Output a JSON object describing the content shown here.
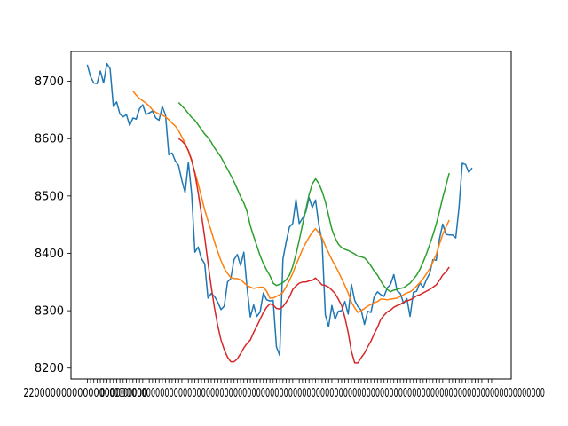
{
  "chart_data": {
    "type": "line",
    "title": "",
    "xlabel": "",
    "ylabel": "",
    "grid": false,
    "legend": "none",
    "xlim": [
      -5,
      130
    ],
    "ylim": [
      8181,
      8752
    ],
    "yticks": [
      8200,
      8300,
      8400,
      8500,
      8600,
      8700
    ],
    "x_tick_count": 125,
    "x_tick_first_label": "2",
    "x_tick_last_label": "00",
    "series": [
      {
        "color": "#1f77b4",
        "start": 0,
        "values": [
          8729,
          8708,
          8697,
          8696,
          8718,
          8697,
          8731,
          8722,
          8656,
          8664,
          8643,
          8638,
          8642,
          8623,
          8636,
          8634,
          8652,
          8659,
          8642,
          8645,
          8648,
          8636,
          8632,
          8656,
          8641,
          8572,
          8575,
          8561,
          8553,
          8527,
          8506,
          8559,
          8504,
          8402,
          8411,
          8391,
          8382,
          8322,
          8330,
          8325,
          8315,
          8302,
          8308,
          8350,
          8356,
          8389,
          8398,
          8379,
          8402,
          8340,
          8289,
          8310,
          8290,
          8298,
          8331,
          8319,
          8317,
          8318,
          8237,
          8222,
          8390,
          8420,
          8446,
          8452,
          8494,
          8452,
          8461,
          8472,
          8497,
          8480,
          8493,
          8450,
          8421,
          8293,
          8272,
          8309,
          8285,
          8299,
          8300,
          8316,
          8294,
          8346,
          8318,
          8307,
          8301,
          8276,
          8299,
          8297,
          8325,
          8333,
          8328,
          8325,
          8340,
          8346,
          8363,
          8335,
          8330,
          8313,
          8321,
          8290,
          8332,
          8334,
          8349,
          8340,
          8354,
          8365,
          8389,
          8388,
          8425,
          8451,
          8433,
          8432,
          8432,
          8427,
          8480,
          8557,
          8555,
          8541,
          8549
        ]
      },
      {
        "color": "#ff7f0e",
        "start": 14,
        "values": [
          8683,
          8676,
          8670,
          8666,
          8662,
          8657,
          8650,
          8646,
          8643,
          8641,
          8638,
          8633,
          8627,
          8622,
          8614,
          8603,
          8592,
          8578,
          8561,
          8541,
          8521,
          8499,
          8476,
          8457,
          8439,
          8420,
          8403,
          8387,
          8374,
          8365,
          8358,
          8356,
          8356,
          8354,
          8349,
          8344,
          8341,
          8339,
          8340,
          8341,
          8341,
          8334,
          8322,
          8322,
          8325,
          8328,
          8332,
          8342,
          8353,
          8365,
          8380,
          8393,
          8407,
          8418,
          8428,
          8437,
          8443,
          8436,
          8427,
          8413,
          8401,
          8389,
          8379,
          8368,
          8356,
          8344,
          8331,
          8315,
          8305,
          8297,
          8300,
          8304,
          8308,
          8311,
          8314,
          8316,
          8320,
          8320,
          8319,
          8320,
          8321,
          8322,
          8325,
          8328,
          8331,
          8333,
          8337,
          8343,
          8349,
          8356,
          8364,
          8373,
          8385,
          8398,
          8416,
          8433,
          8446,
          8458
        ]
      },
      {
        "color": "#2ca02c",
        "start": 28,
        "values": [
          8663,
          8657,
          8651,
          8644,
          8637,
          8632,
          8624,
          8616,
          8608,
          8602,
          8594,
          8584,
          8576,
          8568,
          8557,
          8547,
          8536,
          8525,
          8512,
          8499,
          8488,
          8473,
          8448,
          8430,
          8413,
          8396,
          8382,
          8371,
          8361,
          8348,
          8344,
          8346,
          8349,
          8354,
          8362,
          8377,
          8398,
          8423,
          8450,
          8476,
          8502,
          8521,
          8530,
          8522,
          8508,
          8490,
          8466,
          8442,
          8427,
          8416,
          8410,
          8407,
          8405,
          8402,
          8399,
          8395,
          8394,
          8392,
          8386,
          8378,
          8369,
          8362,
          8352,
          8343,
          8337,
          8333,
          8336,
          8337,
          8339,
          8340,
          8344,
          8348,
          8355,
          8362,
          8372,
          8385,
          8399,
          8415,
          8432,
          8451,
          8473,
          8497,
          8518,
          8540
        ]
      },
      {
        "color": "#d62728",
        "start": 28,
        "values": [
          8600,
          8596,
          8590,
          8579,
          8563,
          8539,
          8506,
          8468,
          8428,
          8384,
          8342,
          8305,
          8274,
          8249,
          8232,
          8219,
          8211,
          8211,
          8216,
          8225,
          8235,
          8243,
          8249,
          8262,
          8273,
          8285,
          8297,
          8306,
          8312,
          8310,
          8304,
          8303,
          8307,
          8315,
          8324,
          8337,
          8343,
          8348,
          8350,
          8350,
          8352,
          8353,
          8357,
          8351,
          8345,
          8344,
          8341,
          8336,
          8330,
          8320,
          8309,
          8288,
          8262,
          8229,
          8209,
          8209,
          8218,
          8226,
          8237,
          8247,
          8260,
          8271,
          8285,
          8292,
          8298,
          8301,
          8306,
          8309,
          8311,
          8315,
          8317,
          8319,
          8322,
          8326,
          8328,
          8331,
          8334,
          8337,
          8341,
          8345,
          8353,
          8362,
          8368,
          8376
        ]
      }
    ]
  }
}
